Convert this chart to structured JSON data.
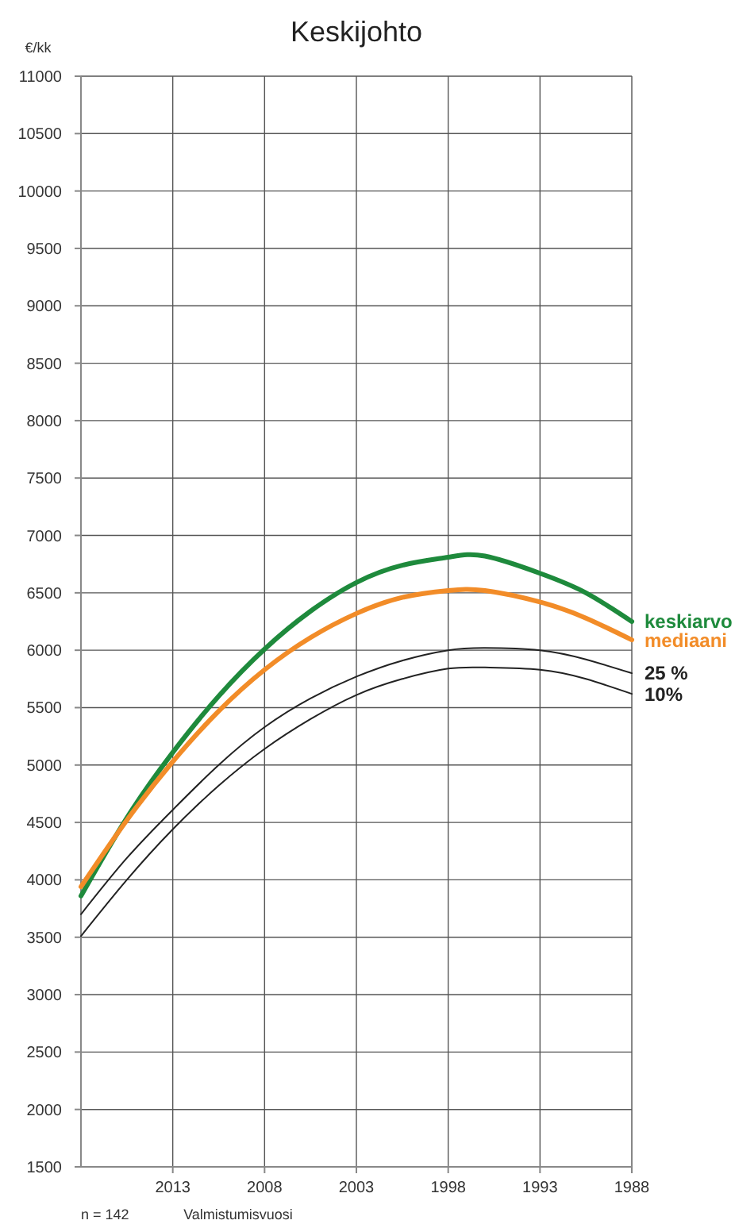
{
  "chart_data": {
    "type": "line",
    "title": "Keskijohto",
    "ylabel": "€/kk",
    "xlabel": "Valmistumisvuosi",
    "annotations": [
      "n = 142"
    ],
    "x": [
      2018,
      2015.5,
      2013,
      2010.5,
      2008,
      2005.5,
      2003,
      2000.5,
      1998,
      1996,
      1993,
      1990.5,
      1988
    ],
    "series": [
      {
        "name": "keskiarvo",
        "color": "#1e8a3c",
        "values": [
          3860,
          4540,
          5110,
          5600,
          6010,
          6340,
          6590,
          6740,
          6810,
          6820,
          6670,
          6500,
          6250
        ]
      },
      {
        "name": "mediaani",
        "color": "#f28c28",
        "values": [
          3940,
          4520,
          5030,
          5470,
          5830,
          6110,
          6320,
          6460,
          6520,
          6520,
          6420,
          6280,
          6090
        ]
      },
      {
        "name": "25 %",
        "color": "#222222",
        "values": [
          3700,
          4190,
          4610,
          5000,
          5330,
          5580,
          5770,
          5910,
          6000,
          6020,
          6000,
          5920,
          5800
        ]
      },
      {
        "name": "10%",
        "color": "#222222",
        "values": [
          3510,
          4000,
          4440,
          4820,
          5140,
          5400,
          5610,
          5750,
          5840,
          5850,
          5830,
          5750,
          5620
        ]
      }
    ],
    "xlim": [
      2018,
      1988
    ],
    "xticks": [
      2013,
      2008,
      2003,
      1998,
      1993,
      1988
    ],
    "ylim": [
      1500,
      11000
    ],
    "yticks": [
      1500,
      2000,
      2500,
      3000,
      3500,
      4000,
      4500,
      5000,
      5500,
      6000,
      6500,
      7000,
      7500,
      8000,
      8500,
      9000,
      9500,
      10000,
      10500,
      11000
    ],
    "grid": true,
    "marker": "none",
    "line_style": "solid"
  }
}
